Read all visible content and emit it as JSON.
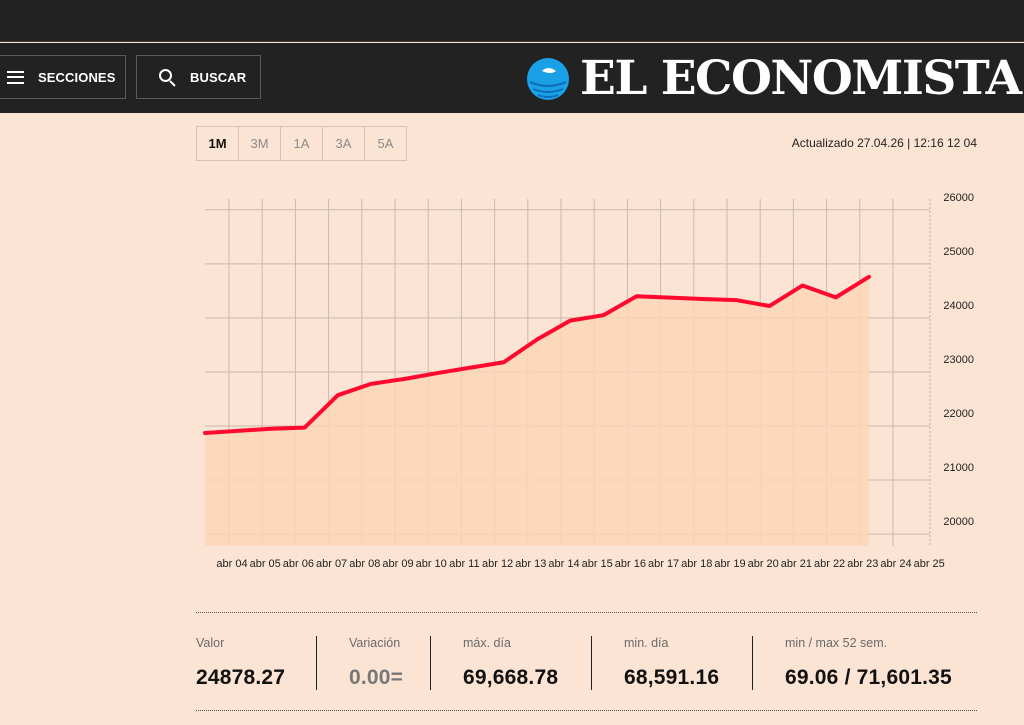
{
  "header": {
    "menu_label": "SECCIONES",
    "search_label": "BUSCAR",
    "logo_text": "EL ECONOMISTA",
    "logo_colors": {
      "primary": "#1aa0e6",
      "dark": "#0a6fb8",
      "text": "#ffffff"
    }
  },
  "range_tabs": [
    {
      "label": "1M",
      "active": true
    },
    {
      "label": "3M",
      "active": false
    },
    {
      "label": "1A",
      "active": false
    },
    {
      "label": "3A",
      "active": false
    },
    {
      "label": "5A",
      "active": false
    }
  ],
  "updated_text": "Actualizado 27.04.26 | 12:16 12 04",
  "chart_data": {
    "type": "area",
    "x": [
      "abr 04",
      "abr 05",
      "abr 06",
      "abr 07",
      "abr 08",
      "abr 09",
      "abr 10",
      "abr 11",
      "abr 12",
      "abr 13",
      "abr 14",
      "abr 15",
      "abr 16",
      "abr 17",
      "abr 18",
      "abr 19",
      "abr 20",
      "abr 21",
      "abr 22",
      "abr 23",
      "abr 24",
      "abr 25"
    ],
    "x_tick_labels": [
      "abr 04",
      "abr 05",
      "abr 06",
      "abr 07",
      "abr 08",
      "abr 09",
      "abr 10",
      "abr 11",
      "abr 12",
      "abr 13",
      "abr 14",
      "abr 15",
      "abr 16",
      "abr 17",
      "abr 18",
      "abr 19",
      "abr 20",
      "abr 21",
      "abr 22",
      "abr 23",
      "abr 24",
      "abr 25"
    ],
    "series": [
      {
        "points": [
          [
            "abr 04",
            21870
          ],
          [
            "abr 06",
            21950
          ],
          [
            "abr 07",
            21970
          ],
          [
            "abr 08",
            22570
          ],
          [
            "abr 09",
            22780
          ],
          [
            "abr 10",
            22870
          ],
          [
            "abr 11",
            22980
          ],
          [
            "abr 12",
            23080
          ],
          [
            "abr 13",
            23180
          ],
          [
            "abr 14",
            23600
          ],
          [
            "abr 15",
            23950
          ],
          [
            "abr 16",
            24050
          ],
          [
            "abr 17",
            24400
          ],
          [
            "abr 19",
            24350
          ],
          [
            "abr 20",
            24330
          ],
          [
            "abr 21",
            24220
          ],
          [
            "abr 22",
            24600
          ],
          [
            "abr 23",
            24380
          ],
          [
            "abr 24",
            24760
          ]
        ],
        "color": "#ff0a2e",
        "fill": "#fbd6b8"
      }
    ],
    "y_ticks": [
      20000,
      21000,
      22000,
      23000,
      24000,
      25000,
      26000
    ],
    "ylim": [
      19780,
      26200
    ],
    "title": "",
    "xlabel": "",
    "ylabel": "",
    "grid": true,
    "y_axis_side": "right"
  },
  "stats": [
    {
      "label": "Valor",
      "value": "24878.27"
    },
    {
      "label": "Variación",
      "value": "0.00="
    },
    {
      "label": "máx. día",
      "value": "69,668.78"
    },
    {
      "label": "min. día",
      "value": "68,591.16"
    },
    {
      "label": "min / max 52 sem.",
      "value": "69.06 / 71,601.35"
    }
  ]
}
